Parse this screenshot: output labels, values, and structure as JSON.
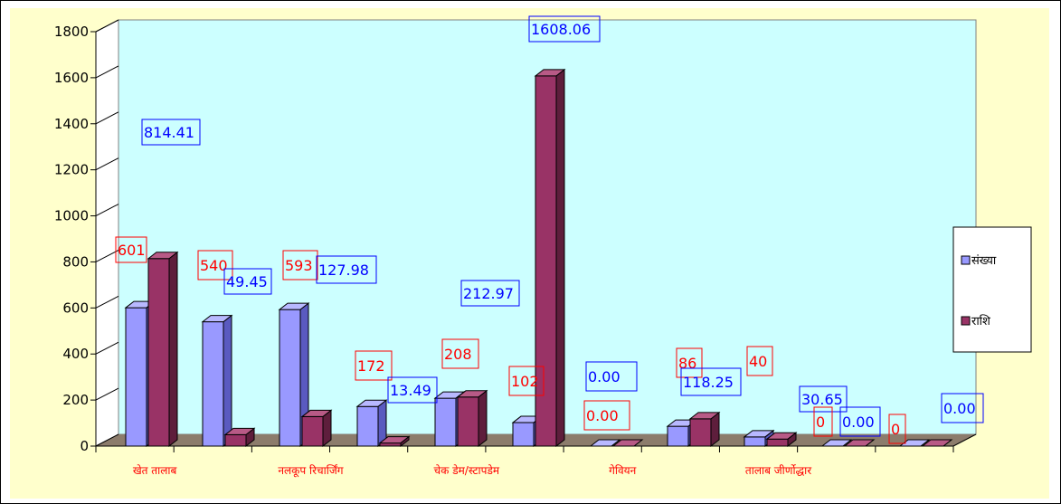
{
  "chart_data": {
    "type": "bar",
    "categories": [
      "खेत तालाब",
      "",
      "नलकूप रिचार्जिंग",
      "",
      "चेक डेम/स्टापडेम",
      "",
      "गेवियन",
      "",
      "तालाब जीर्णोद्धार",
      "",
      ""
    ],
    "series": [
      {
        "name": "संख्या",
        "values": [
          601,
          540,
          593,
          172,
          208,
          102,
          0,
          86,
          40,
          0,
          0
        ]
      },
      {
        "name": "राशि",
        "values": [
          814.41,
          49.45,
          127.98,
          13.49,
          212.97,
          1608.06,
          0,
          118.25,
          30.65,
          0,
          0
        ]
      }
    ],
    "yticks": [
      "1800",
      "1600",
      "1400",
      "1200",
      "1000",
      "800",
      "600",
      "400",
      "200",
      "0"
    ],
    "ylim": [
      0,
      1800
    ],
    "legend_position": "right",
    "data_labels": [
      {
        "text": "814.41",
        "color": "blue"
      },
      {
        "text": "601",
        "color": "red"
      },
      {
        "text": "540",
        "color": "red"
      },
      {
        "text": "49.45",
        "color": "blue"
      },
      {
        "text": "593",
        "color": "red"
      },
      {
        "text": "127.98",
        "color": "blue"
      },
      {
        "text": "212.97",
        "color": "blue"
      },
      {
        "text": "1608.06",
        "color": "blue"
      },
      {
        "text": "172",
        "color": "red"
      },
      {
        "text": "13.49",
        "color": "blue"
      },
      {
        "text": "208",
        "color": "red"
      },
      {
        "text": "102",
        "color": "red"
      },
      {
        "text": "0.00",
        "color": "blue"
      },
      {
        "text": "0.00",
        "color": "red"
      },
      {
        "text": "86",
        "color": "red"
      },
      {
        "text": "118.25",
        "color": "blue"
      },
      {
        "text": "40",
        "color": "red"
      },
      {
        "text": "30.65",
        "color": "blue"
      },
      {
        "text": "0",
        "color": "red"
      },
      {
        "text": "0.00",
        "color": "blue"
      },
      {
        "text": "0",
        "color": "red"
      },
      {
        "text": "0.00",
        "color": "blue"
      }
    ]
  },
  "colors": {
    "background": "#ffffcc",
    "plot_wall": "#ccffff",
    "floor": "#8c7c6c",
    "series1": "#9999ff",
    "series1_side": "#5a5ac0",
    "series1_top": "#b8b8ff",
    "series2": "#993366",
    "series2_side": "#5e1e3c",
    "series2_top": "#b85a86",
    "label_red": "#ff0000",
    "label_blue": "#0000ff"
  }
}
